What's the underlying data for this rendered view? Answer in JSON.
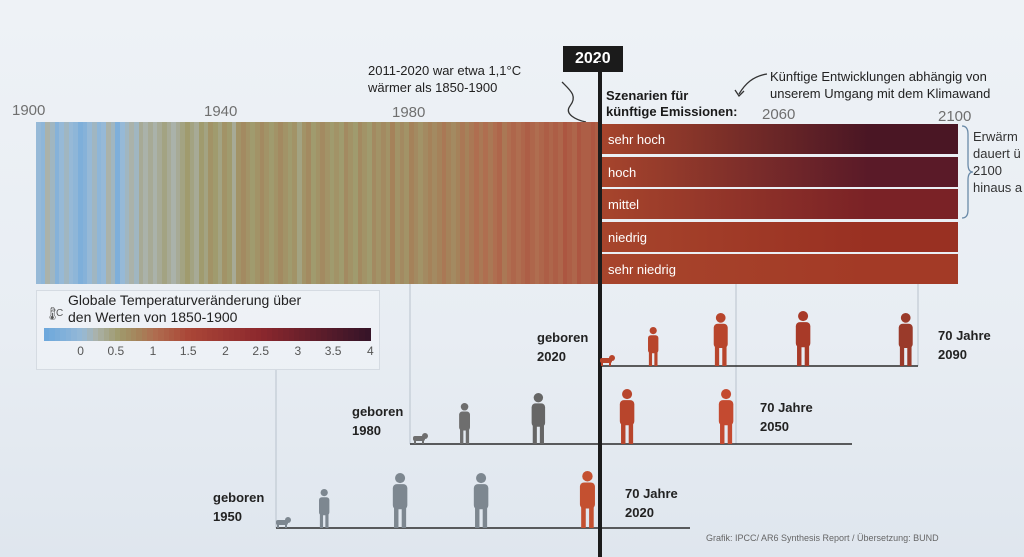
{
  "chart_data": {
    "type": "heatmap",
    "years_axis": [
      "1900",
      "1940",
      "1980",
      "2020",
      "2060",
      "2100"
    ],
    "warming_stripes_start": 1900,
    "warming_stripes_end": 2020,
    "stripe_values": [
      0.0,
      -0.1,
      0.2,
      0.1,
      -0.2,
      0.0,
      0.1,
      0.0,
      -0.1,
      -0.3,
      -0.2,
      0.0,
      0.1,
      -0.1,
      0.0,
      0.2,
      0.1,
      -0.3,
      0.0,
      0.1,
      0.2,
      0.1,
      0.3,
      0.2,
      0.3,
      0.2,
      0.3,
      0.4,
      0.3,
      0.2,
      0.3,
      0.4,
      0.5,
      0.4,
      0.3,
      0.5,
      0.4,
      0.6,
      0.5,
      0.4,
      0.6,
      0.5,
      0.3,
      0.6,
      0.7,
      0.6,
      0.5,
      0.6,
      0.7,
      0.6,
      0.5,
      0.6,
      0.7,
      0.6,
      0.5,
      0.6,
      0.4,
      0.6,
      0.7,
      0.5,
      0.6,
      0.7,
      0.6,
      0.5,
      0.6,
      0.5,
      0.7,
      0.6,
      0.5,
      0.7,
      0.6,
      0.5,
      0.7,
      0.6,
      0.7,
      0.6,
      0.8,
      0.6,
      0.7,
      0.6,
      0.8,
      0.7,
      0.6,
      0.7,
      0.8,
      0.7,
      0.8,
      0.9,
      0.8,
      0.7,
      0.8,
      0.9,
      0.8,
      0.9,
      1.0,
      0.9,
      1.0,
      0.9,
      1.0,
      1.1,
      0.9,
      1.0,
      1.1,
      1.0,
      1.1,
      1.2,
      1.1,
      1.0,
      1.1,
      1.2,
      1.1,
      1.2,
      1.1,
      1.3,
      1.2,
      1.1,
      1.3,
      1.2,
      1.2,
      1.3,
      1.2
    ],
    "scenarios": [
      {
        "name": "sehr hoch",
        "color": "#4a1624"
      },
      {
        "name": "hoch",
        "color": "#5a1a28"
      },
      {
        "name": "mittel",
        "color": "#7a2226"
      },
      {
        "name": "niedrig",
        "color": "#993022"
      },
      {
        "name": "sehr niedrig",
        "color": "#a33a26"
      }
    ],
    "legend": {
      "title_line1": "Globale Temperaturveränderung über",
      "title_line2": "den Werten von 1850-1900",
      "unit": "°C",
      "ticks": [
        "0",
        "0.5",
        "1",
        "1.5",
        "2",
        "2.5",
        "3",
        "3.5",
        "4"
      ]
    }
  },
  "header": {
    "year2020": "2020",
    "note_left_line1": "2011-2020 war etwa 1,1°C",
    "note_left_line2": "wärmer als 1850-1900",
    "scen_title_line1": "Szenarien für",
    "scen_title_line2": "künftige Emissionen:",
    "note_right_line1": "Künftige Entwicklungen abhängig von",
    "note_right_line2": "unserem Umgang mit dem Klimawand",
    "side_line1": "Erwärm",
    "side_line2": "dauert ü",
    "side_line3": "2100",
    "side_line4": "hinaus a"
  },
  "generations": [
    {
      "born_line1": "geboren",
      "born_line2": "2020",
      "age_line1": "70 Jahre",
      "age_line2": "2090"
    },
    {
      "born_line1": "geboren",
      "born_line2": "1980",
      "age_line1": "70 Jahre",
      "age_line2": "2050"
    },
    {
      "born_line1": "geboren",
      "born_line2": "1950",
      "age_line1": "70 Jahre",
      "age_line2": "2020"
    }
  ],
  "credit": "Grafik: IPCC/ AR6 Synthesis Report / Übersetzung: BUND"
}
